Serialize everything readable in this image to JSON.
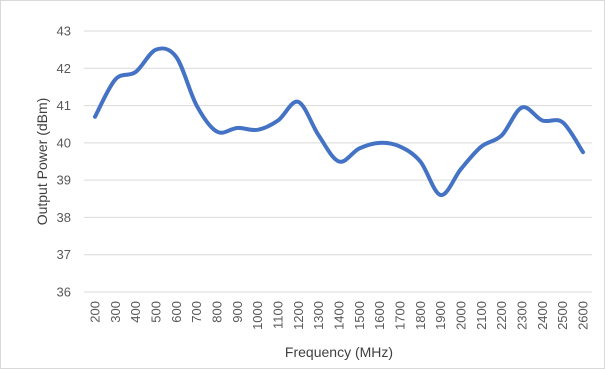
{
  "chart_data": {
    "type": "line",
    "title": "",
    "xlabel": "Frequency (MHz)",
    "ylabel": "Output Power (dBm)",
    "ylim": [
      36,
      43
    ],
    "y_ticks": [
      "36",
      "37",
      "38",
      "39",
      "40",
      "41",
      "42",
      "43"
    ],
    "grid": "horizontal",
    "legend": "none",
    "smooth": true,
    "categories": [
      "200",
      "300",
      "400",
      "500",
      "600",
      "700",
      "800",
      "900",
      "1000",
      "1100",
      "1200",
      "1300",
      "1400",
      "1500",
      "1600",
      "1700",
      "1800",
      "1900",
      "2000",
      "2100",
      "2200",
      "2300",
      "2400",
      "2500",
      "2600"
    ],
    "series": [
      {
        "color": "#4472c4",
        "values": [
          40.7,
          41.7,
          41.9,
          42.5,
          42.3,
          41.0,
          40.3,
          40.4,
          40.35,
          40.6,
          41.1,
          40.2,
          39.5,
          39.85,
          40.0,
          39.9,
          39.5,
          38.6,
          39.3,
          39.9,
          40.2,
          40.95,
          40.6,
          40.55,
          39.75
        ]
      }
    ]
  }
}
